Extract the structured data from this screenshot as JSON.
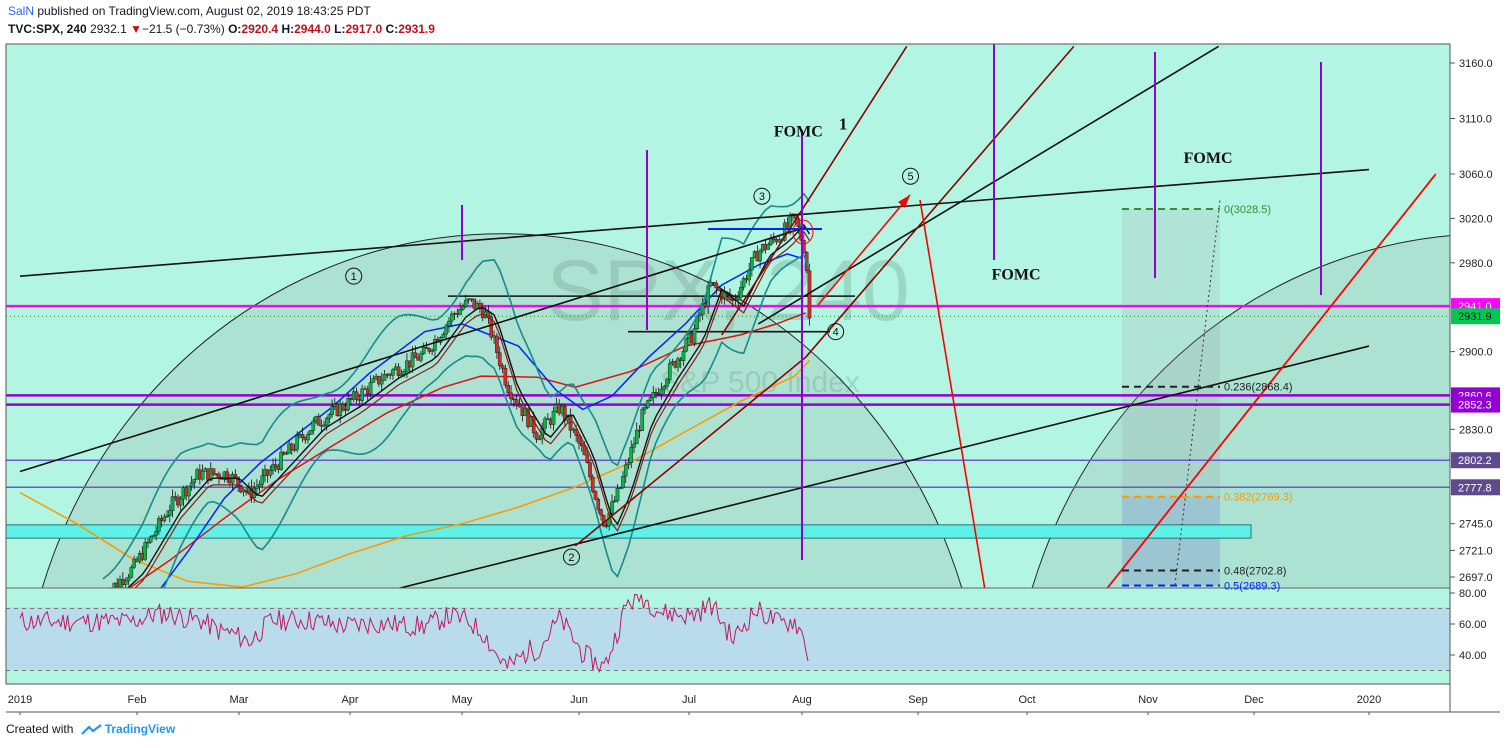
{
  "header": {
    "user": "SalN",
    "published_text": "published on TradingView.com, August 02, 2019 18:43:25 PDT",
    "symbol": "TVC:SPX, 240",
    "last": "2932.1",
    "change_arrow": "▼",
    "change": "−21.5 (−0.73%)",
    "open_label": "O:",
    "open": "2920.4",
    "high_label": "H:",
    "high": "2944.0",
    "low_label": "L:",
    "low": "2917.0",
    "close_label": "C:",
    "close": "2931.9"
  },
  "footer": {
    "created_with": "Created with",
    "brand": "TradingView",
    "logo_icon": "tradingview-logo-icon"
  },
  "colors": {
    "background": "#b3f5e3",
    "rsi_band": "#b8dcec",
    "magenta": "#ff00ff",
    "purple": "#9400d3",
    "red": "#ff0000",
    "dark_red": "#8b0000",
    "orange": "#ff9800",
    "blue": "#0022ff",
    "teal": "#1a8a8a",
    "rsi_line": "#c2185b",
    "cyan_zone": "#5ff0e8"
  },
  "chart_data": {
    "type": "candlestick",
    "symbol": "TVC:SPX",
    "timeframe": "240",
    "ylim": [
      2680,
      3180
    ],
    "y_ticks": [
      3160.0,
      3110.0,
      3060.0,
      3020.0,
      2980.0,
      2900.0,
      2830.0,
      2745.0,
      2721.0,
      2697.0
    ],
    "x_ticks": [
      "2019",
      "Feb",
      "Mar",
      "Apr",
      "May",
      "Jun",
      "Jul",
      "Aug",
      "Sep",
      "Oct",
      "Nov",
      "Dec",
      "2020"
    ],
    "watermark": {
      "text": "SPX, 240",
      "subtext": "S&P 500 Index"
    },
    "price_labels": [
      {
        "value": 2941.0,
        "text": "2941.0",
        "color": "#ff00ff"
      },
      {
        "value": 2931.9,
        "text": "2931.9",
        "color": "#00c853"
      },
      {
        "value": 2860.6,
        "text": "2860.6",
        "color": "#9400d3"
      },
      {
        "value": 2852.3,
        "text": "2852.3",
        "color": "#9400d3"
      },
      {
        "value": 2802.2,
        "text": "2802.2",
        "color": "#5e4b8b"
      },
      {
        "value": 2777.8,
        "text": "2777.8",
        "color": "#5e4b8b"
      }
    ],
    "fib_levels": [
      {
        "ratio": "0",
        "value": 3028.5,
        "text": "0(3028.5)",
        "color": "#3a8a3a"
      },
      {
        "ratio": "0.236",
        "value": 2868.4,
        "text": "0.236(2868.4)",
        "color": "#222222"
      },
      {
        "ratio": "0.382",
        "value": 2769.3,
        "text": "0.382(2769.3)",
        "color": "#ff9800"
      },
      {
        "ratio": "0.48",
        "value": 2702.8,
        "text": "0.48(2702.8)",
        "color": "#222222"
      },
      {
        "ratio": "0.5",
        "value": 2689.3,
        "text": "0.5(2689.3)",
        "color": "#0022ff"
      }
    ],
    "annotations": [
      {
        "text": "FOMC",
        "date": "2019-07-31",
        "price": 3094
      },
      {
        "text": "1",
        "date": "2019-08-12",
        "price": 3100
      },
      {
        "text": "FOMC",
        "date": "2019-11-18",
        "price": 3070
      },
      {
        "text": "FOMC",
        "date": "2019-09-28",
        "price": 2965
      }
    ],
    "wave_labels": [
      {
        "text": "1",
        "date": "2019-04-02",
        "price": 2968
      },
      {
        "text": "2",
        "date": "2019-05-30",
        "price": 2715
      },
      {
        "text": "3",
        "date": "2019-07-21",
        "price": 3040
      },
      {
        "text": "4",
        "date": "2019-08-10",
        "price": 2918
      },
      {
        "text": "5",
        "date": "2019-08-30",
        "price": 3058
      }
    ],
    "rsi": {
      "ylim": [
        25,
        85
      ],
      "y_ticks": [
        80.0,
        60.0,
        40.0
      ],
      "upper_band": 70,
      "lower_band": 30
    }
  }
}
